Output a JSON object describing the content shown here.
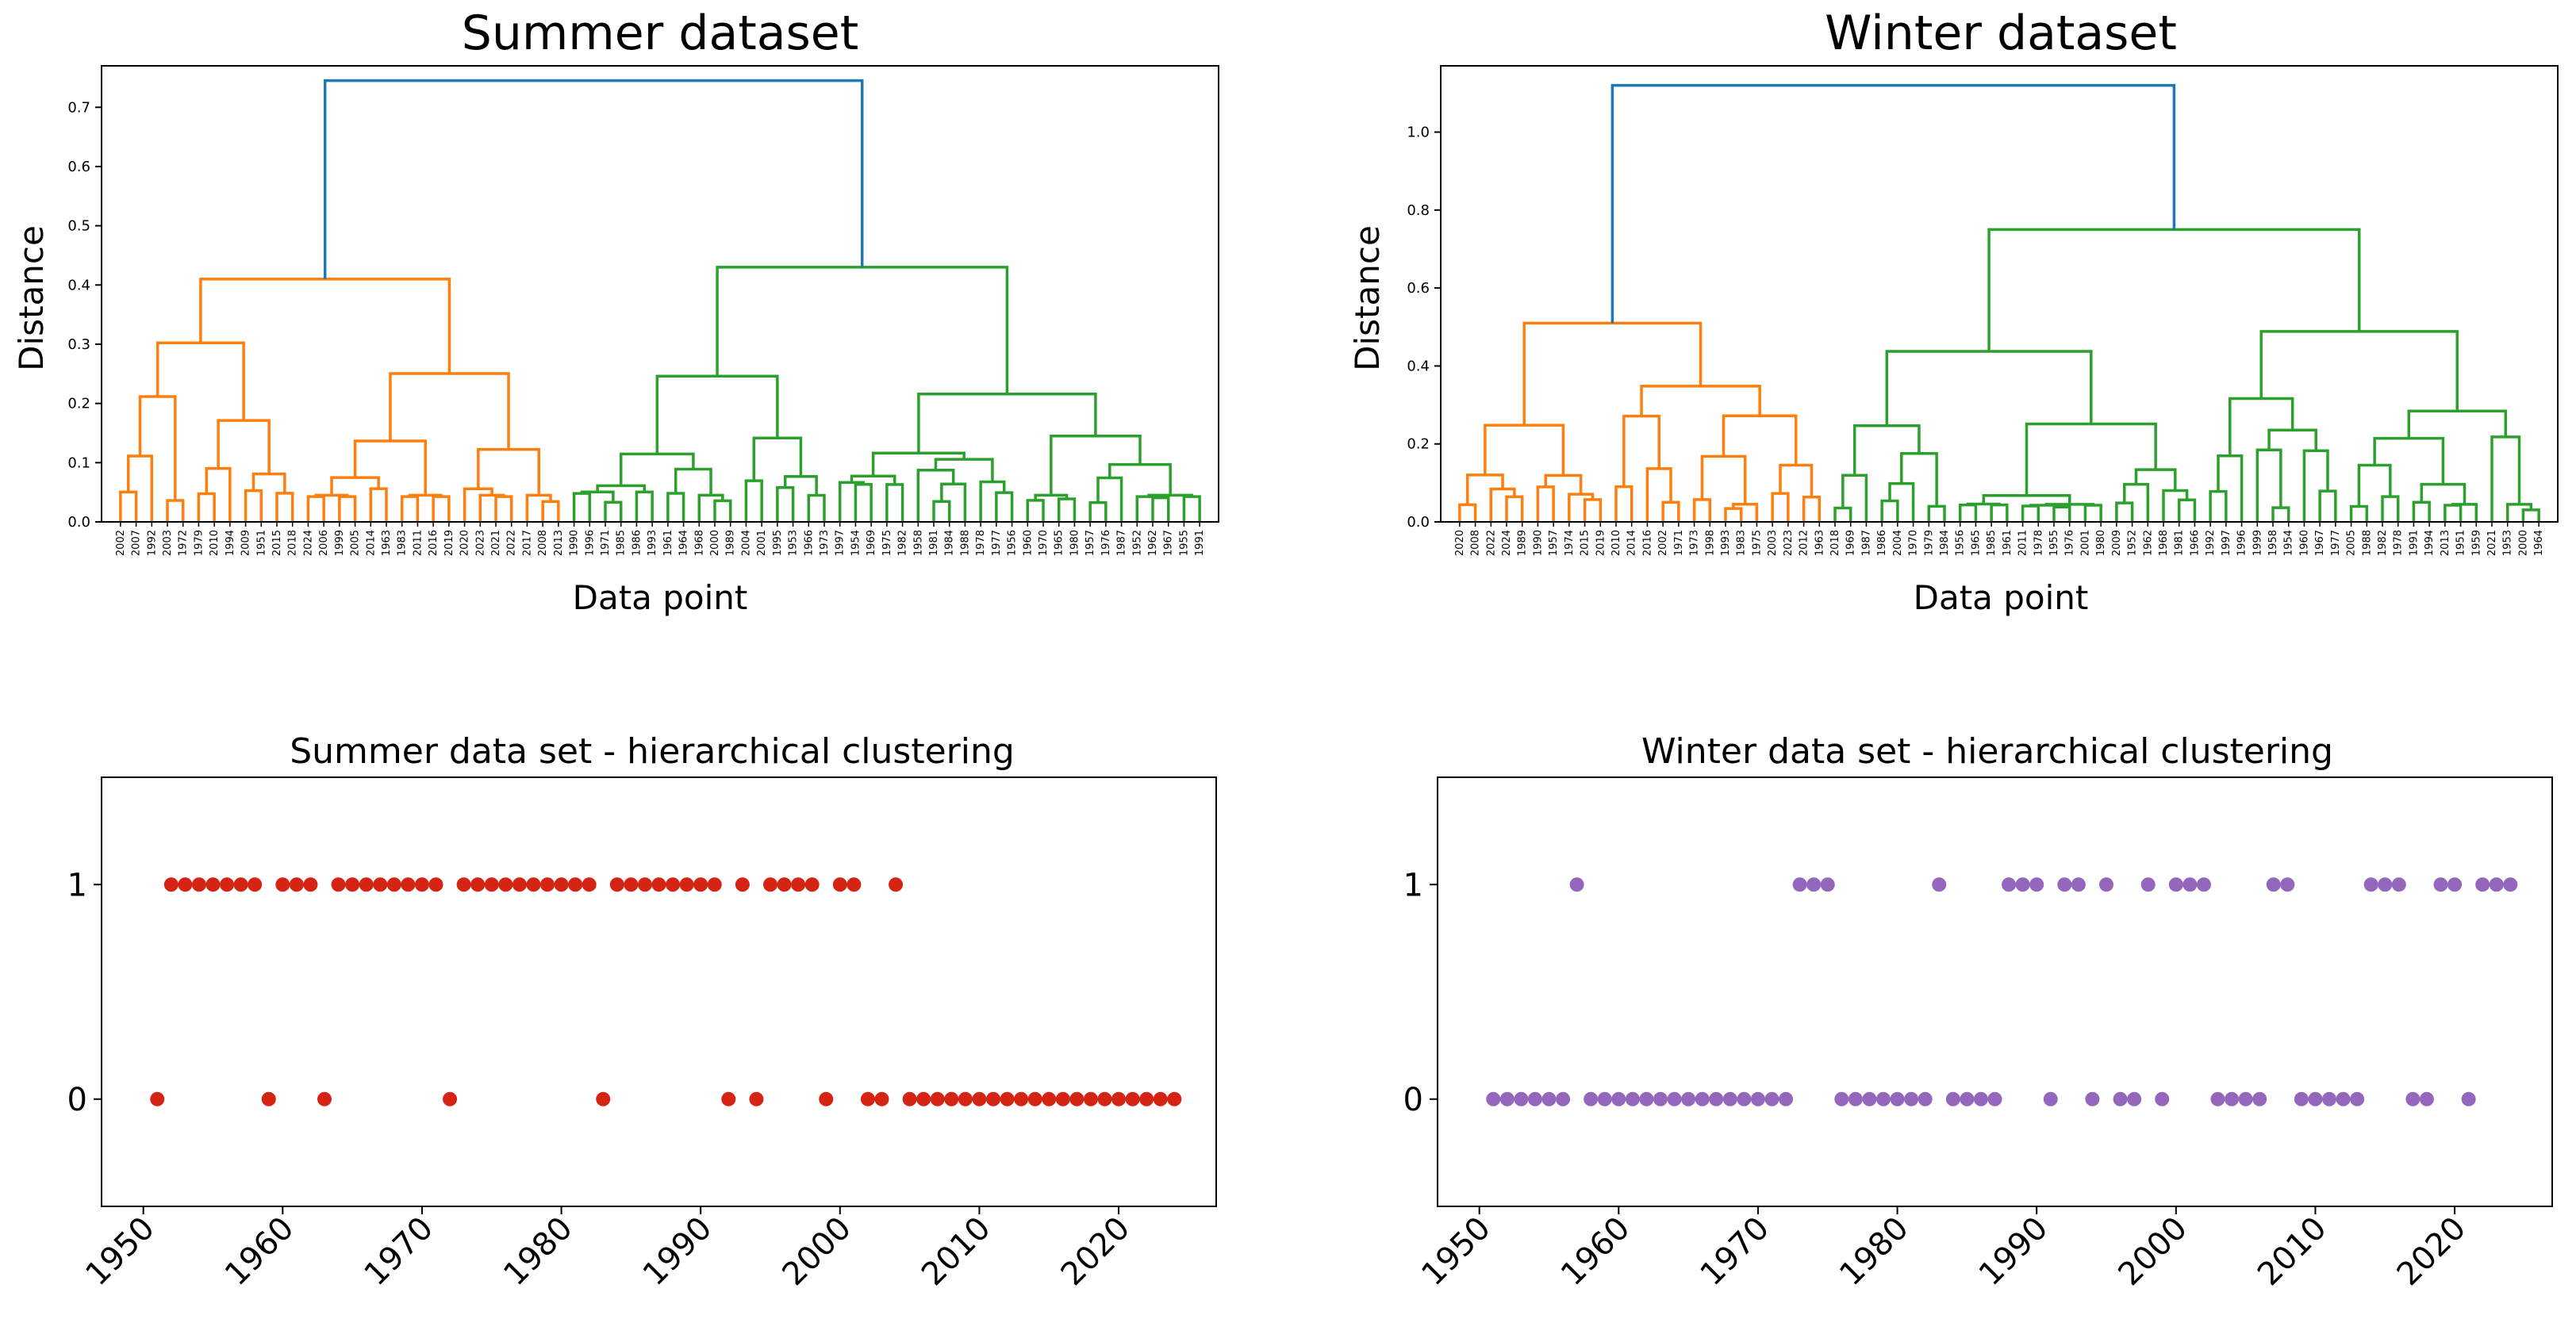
{
  "chart_data": [
    {
      "type": "dendrogram",
      "title": "Summer dataset",
      "xlabel": "Data point",
      "ylabel": "Distance",
      "ylim": [
        0,
        0.77
      ],
      "yticks": [
        0.0,
        0.1,
        0.2,
        0.3,
        0.4,
        0.5,
        0.6,
        0.7
      ],
      "ytick_labels": [
        "0.0",
        "0.1",
        "0.2",
        "0.3",
        "0.4",
        "0.5",
        "0.6",
        "0.7"
      ],
      "colors": {
        "cluster_a": "#ff7f0e",
        "cluster_b": "#2ca02c",
        "root": "#1f77b4"
      },
      "leaves": [
        "2002",
        "2007",
        "1992",
        "2003",
        "1972",
        "1979",
        "2010",
        "1994",
        "2009",
        "1951",
        "2015",
        "2018",
        "2024",
        "2006",
        "1999",
        "2005",
        "2014",
        "1963",
        "1983",
        "2011",
        "2016",
        "2019",
        "2020",
        "2023",
        "2021",
        "2022",
        "2017",
        "2008",
        "2013",
        "1990",
        "1996",
        "1971",
        "1985",
        "1986",
        "1993",
        "1961",
        "1964",
        "1968",
        "2000",
        "1989",
        "2004",
        "2001",
        "1995",
        "1953",
        "1966",
        "1973",
        "1997",
        "1954",
        "1969",
        "1975",
        "1982",
        "1958",
        "1981",
        "1984",
        "1988",
        "1978",
        "1977",
        "1956",
        "1960",
        "1970",
        "1965",
        "1980",
        "1957",
        "1976",
        "1987",
        "1952",
        "1962",
        "1967",
        "1955",
        "1991"
      ],
      "split": 29,
      "height_root": 0.745,
      "height_a": 0.41,
      "height_b": 0.43,
      "min_leaf_height": 0.03,
      "max_leaf_height": 0.17
    },
    {
      "type": "dendrogram",
      "title": "Winter dataset",
      "xlabel": "Data point",
      "ylabel": "Distance",
      "ylim": [
        0,
        1.17
      ],
      "yticks": [
        0.0,
        0.2,
        0.4,
        0.6,
        0.8,
        1.0
      ],
      "ytick_labels": [
        "0.0",
        "0.2",
        "0.4",
        "0.6",
        "0.8",
        "1.0"
      ],
      "colors": {
        "cluster_a": "#ff7f0e",
        "cluster_b": "#2ca02c",
        "root": "#1f77b4"
      },
      "leaves": [
        "2020",
        "2008",
        "2022",
        "2024",
        "1989",
        "1990",
        "1957",
        "1974",
        "2015",
        "2019",
        "2010",
        "2014",
        "2016",
        "2002",
        "1971",
        "1973",
        "1998",
        "1993",
        "1983",
        "1975",
        "2003",
        "2023",
        "2012",
        "1963",
        "2018",
        "1969",
        "1987",
        "1986",
        "2004",
        "1970",
        "1979",
        "1984",
        "1956",
        "1965",
        "1985",
        "1961",
        "2011",
        "1978",
        "1955",
        "1976",
        "2001",
        "1980",
        "2009",
        "1952",
        "1962",
        "1968",
        "1981",
        "1966",
        "1992",
        "1997",
        "1996",
        "1999",
        "1958",
        "1954",
        "1960",
        "1967",
        "1977",
        "2005",
        "1988",
        "1982",
        "1978",
        "1991",
        "1994",
        "2013",
        "1951",
        "1959",
        "2021",
        "1953",
        "2000",
        "1964"
      ],
      "split": 24,
      "height_root": 1.12,
      "height_a": 0.51,
      "height_b": 0.75,
      "min_leaf_height": 0.03,
      "max_leaf_height": 0.27
    },
    {
      "type": "scatter",
      "title": "Summer data set - hierarchical clustering",
      "color": "#d62414",
      "xlim": [
        1947,
        2027
      ],
      "ylim": [
        -0.5,
        1.5
      ],
      "xticks": [
        1950,
        1960,
        1970,
        1980,
        1990,
        2000,
        2010,
        2020
      ],
      "xtick_labels": [
        "1950",
        "1960",
        "1970",
        "1980",
        "1990",
        "2000",
        "2010",
        "2020"
      ],
      "yticks": [
        0,
        1
      ],
      "ytick_labels": [
        "0",
        "1"
      ],
      "cluster_1_years": [
        1952,
        1953,
        1954,
        1955,
        1956,
        1957,
        1958,
        1960,
        1961,
        1962,
        1964,
        1965,
        1966,
        1967,
        1968,
        1969,
        1970,
        1971,
        1973,
        1974,
        1975,
        1976,
        1977,
        1978,
        1979,
        1980,
        1981,
        1982,
        1984,
        1985,
        1986,
        1987,
        1988,
        1989,
        1990,
        1991,
        1993,
        1995,
        1996,
        1997,
        1998,
        2000,
        2001,
        2004
      ],
      "cluster_0_years": [
        1951,
        1959,
        1963,
        1972,
        1983,
        1992,
        1994,
        1999,
        2002,
        2003,
        2005,
        2006,
        2007,
        2008,
        2009,
        2010,
        2011,
        2012,
        2013,
        2014,
        2015,
        2016,
        2017,
        2018,
        2019,
        2020,
        2021,
        2022,
        2023,
        2024
      ]
    },
    {
      "type": "scatter",
      "title": "Winter data set - hierarchical clustering",
      "color": "#9467bd",
      "xlim": [
        1947,
        2027
      ],
      "ylim": [
        -0.5,
        1.5
      ],
      "xticks": [
        1950,
        1960,
        1970,
        1980,
        1990,
        2000,
        2010,
        2020
      ],
      "xtick_labels": [
        "1950",
        "1960",
        "1970",
        "1980",
        "1990",
        "2000",
        "2010",
        "2020"
      ],
      "yticks": [
        0,
        1
      ],
      "ytick_labels": [
        "0",
        "1"
      ],
      "cluster_1_years": [
        1957,
        1973,
        1974,
        1975,
        1983,
        1988,
        1989,
        1990,
        1992,
        1993,
        1995,
        1998,
        2000,
        2001,
        2002,
        2007,
        2008,
        2014,
        2015,
        2016,
        2019,
        2020,
        2022,
        2023,
        2024
      ],
      "cluster_0_years": [
        1951,
        1952,
        1953,
        1954,
        1955,
        1956,
        1958,
        1959,
        1960,
        1961,
        1962,
        1963,
        1964,
        1965,
        1966,
        1967,
        1968,
        1969,
        1970,
        1971,
        1972,
        1976,
        1977,
        1978,
        1979,
        1980,
        1981,
        1982,
        1984,
        1985,
        1986,
        1987,
        1991,
        1994,
        1996,
        1997,
        1999,
        2003,
        2004,
        2005,
        2006,
        2009,
        2010,
        2011,
        2012,
        2013,
        2017,
        2018,
        2021
      ]
    }
  ]
}
